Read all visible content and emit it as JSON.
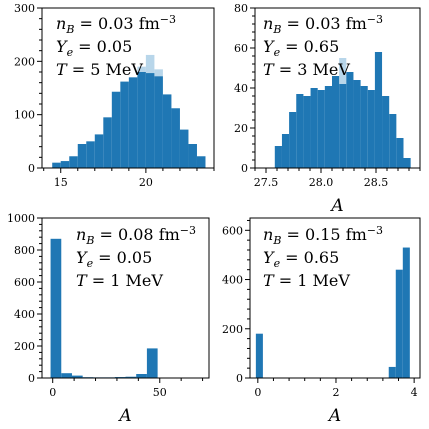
{
  "colors": {
    "bar": "#1f77b4",
    "bar_light": "#b8d6ea"
  },
  "chart_data": [
    {
      "type": "bar",
      "xlabel": "",
      "ylabel": "",
      "xlim": [
        13.9,
        24.0
      ],
      "ylim": [
        0,
        300
      ],
      "xticks": [
        15,
        20
      ],
      "yticks": [
        0,
        100,
        200,
        300
      ],
      "annotations": [
        "n_B = 0.03 fm^-3",
        "Y_e = 0.05",
        "T = 5 MeV"
      ],
      "bins": {
        "left": [
          14.5,
          15.0,
          15.5,
          16.0,
          16.5,
          17.0,
          17.5,
          18.0,
          18.5,
          19.0,
          19.5,
          20.0,
          20.5,
          21.0,
          21.5,
          22.0,
          22.5,
          23.0
        ],
        "width": 0.5,
        "values": [
          10,
          13,
          22,
          45,
          50,
          63,
          95,
          143,
          162,
          170,
          180,
          178,
          172,
          138,
          112,
          72,
          45,
          22
        ],
        "light_values": [
          0,
          0,
          0,
          0,
          0,
          0,
          0,
          0,
          0,
          0,
          190,
          212,
          185,
          0,
          0,
          0,
          0,
          0
        ]
      }
    },
    {
      "type": "bar",
      "xlabel": "A",
      "ylabel": "",
      "xlim": [
        27.4,
        28.9
      ],
      "ylim": [
        0,
        80
      ],
      "xticks": [
        27.5,
        28.0,
        28.5
      ],
      "yticks": [
        0,
        20,
        40,
        60,
        80
      ],
      "annotations": [
        "n_B = 0.03 fm^-3",
        "Y_e = 0.65",
        "T = 3 MeV"
      ],
      "bins": {
        "left": [
          27.58,
          27.645,
          27.71,
          27.775,
          27.84,
          27.905,
          27.97,
          28.035,
          28.1,
          28.165,
          28.23,
          28.295,
          28.36,
          28.425,
          28.49,
          28.555,
          28.62,
          28.685,
          28.75
        ],
        "width": 0.065,
        "values": [
          11,
          17,
          28,
          37,
          36,
          40,
          39,
          41,
          46,
          42,
          48,
          44,
          41,
          39,
          58,
          36,
          27,
          15,
          5
        ],
        "light_values": [
          0,
          0,
          0,
          0,
          0,
          0,
          0,
          0,
          0,
          55,
          0,
          0,
          0,
          0,
          0,
          0,
          0,
          0,
          0
        ]
      }
    },
    {
      "type": "bar",
      "xlabel": "A",
      "ylabel": "",
      "xlim": [
        -5,
        73
      ],
      "ylim": [
        0,
        1000
      ],
      "xticks": [
        0,
        50
      ],
      "yticks": [
        0,
        200,
        400,
        600,
        800,
        1000
      ],
      "annotations": [
        "n_B = 0.08 fm^-3",
        "Y_e = 0.05",
        "T = 1 MeV"
      ],
      "bins": {
        "left": [
          -1,
          4,
          9,
          14,
          19,
          24,
          29,
          34,
          39,
          44
        ],
        "width": 5,
        "values": [
          870,
          30,
          15,
          5,
          4,
          4,
          6,
          8,
          25,
          185
        ],
        "light_values": [
          0,
          0,
          0,
          0,
          0,
          0,
          0,
          0,
          0,
          0
        ]
      }
    },
    {
      "type": "bar",
      "xlabel": "A",
      "ylabel": "",
      "xlim": [
        -0.2,
        4.15
      ],
      "ylim": [
        0,
        650
      ],
      "xticks": [
        0,
        2,
        4
      ],
      "yticks": [
        0,
        200,
        400,
        600
      ],
      "annotations": [
        "n_B = 0.15 fm^-3",
        "Y_e = 0.65",
        "T = 1 MeV"
      ],
      "bins": {
        "left": [
          -0.05,
          3.35,
          3.53,
          3.71
        ],
        "width": 0.18,
        "values": [
          180,
          45,
          440,
          530
        ],
        "light_values": [
          0,
          0,
          0,
          0
        ]
      }
    }
  ]
}
